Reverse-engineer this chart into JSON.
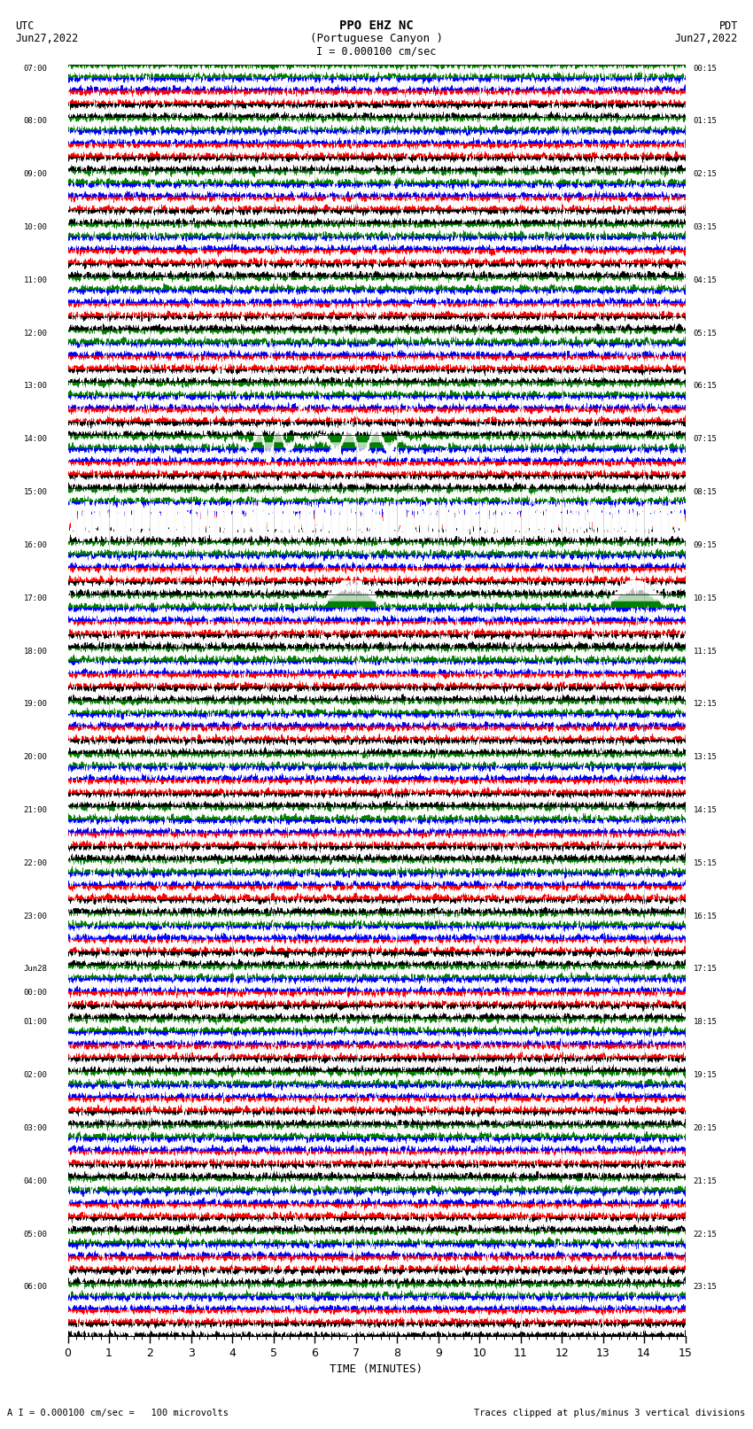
{
  "title_line1": "PPO EHZ NC",
  "title_line2": "(Portuguese Canyon )",
  "scale_label": "I = 0.000100 cm/sec",
  "left_header_line1": "UTC",
  "left_header_line2": "Jun27,2022",
  "right_header_line1": "PDT",
  "right_header_line2": "Jun27,2022",
  "utc_labels": [
    "07:00",
    "08:00",
    "09:00",
    "10:00",
    "11:00",
    "12:00",
    "13:00",
    "14:00",
    "15:00",
    "16:00",
    "17:00",
    "18:00",
    "19:00",
    "20:00",
    "21:00",
    "22:00",
    "23:00",
    "Jun28\n00:00",
    "01:00",
    "02:00",
    "03:00",
    "04:00",
    "05:00",
    "06:00"
  ],
  "pdt_labels": [
    "00:15",
    "01:15",
    "02:15",
    "03:15",
    "04:15",
    "05:15",
    "06:15",
    "07:15",
    "08:15",
    "09:15",
    "10:15",
    "11:15",
    "12:15",
    "13:15",
    "14:15",
    "15:15",
    "16:15",
    "17:15",
    "18:15",
    "19:15",
    "20:15",
    "21:15",
    "22:15",
    "23:15"
  ],
  "n_rows": 24,
  "n_traces_per_row": 4,
  "colors": [
    "black",
    "red",
    "blue",
    "green"
  ],
  "time_minutes": 15,
  "xlabel": "TIME (MINUTES)",
  "bottom_left_note": "A I = 0.000100 cm/sec =   100 microvolts",
  "bottom_right_note": "Traces clipped at plus/minus 3 vertical divisions",
  "background_color": "white",
  "plot_background": "white",
  "large_event_row": 7,
  "large_event_row2": 8,
  "large_event_row3": 10
}
